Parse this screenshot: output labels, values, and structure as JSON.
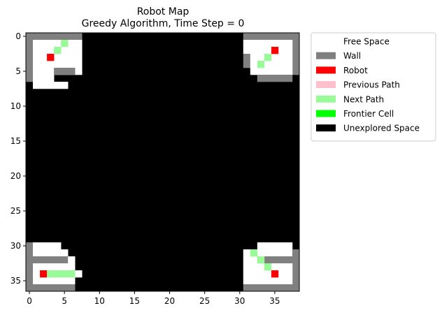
{
  "chart_data": {
    "type": "heatmap",
    "title": "Robot Map",
    "subtitle": "Greedy Algorithm, Time Step = 0",
    "grid": false,
    "xlim": [
      -0.5,
      38.5
    ],
    "ylim": [
      36.5,
      -0.5
    ],
    "x_ticks": [
      0,
      5,
      10,
      15,
      20,
      25,
      30,
      35
    ],
    "y_ticks": [
      0,
      5,
      10,
      15,
      20,
      25,
      30,
      35
    ],
    "background_cell": "unexplored",
    "legend_placement": "outside-right",
    "legend": [
      {
        "key": "free",
        "label": "Free Space",
        "color": "#ffffff"
      },
      {
        "key": "wall",
        "label": "Wall",
        "color": "#808080"
      },
      {
        "key": "robot",
        "label": "Robot",
        "color": "#ff0000"
      },
      {
        "key": "prev",
        "label": "Previous Path",
        "color": "#ffc0cb"
      },
      {
        "key": "next",
        "label": "Next Path",
        "color": "#98fb98"
      },
      {
        "key": "frontier",
        "label": "Frontier Cell",
        "color": "#00ff00"
      },
      {
        "key": "unexplored",
        "label": "Unexplored Space",
        "color": "#000000"
      }
    ],
    "regions": [
      {
        "type": "wall",
        "x": [
          0,
          7
        ],
        "y": [
          0,
          0
        ]
      },
      {
        "type": "wall",
        "x": [
          0,
          0
        ],
        "y": [
          1,
          6
        ]
      },
      {
        "type": "free",
        "x": [
          1,
          7
        ],
        "y": [
          1,
          5
        ]
      },
      {
        "type": "wall",
        "x": [
          1,
          3
        ],
        "y": [
          6,
          6
        ]
      },
      {
        "type": "wall",
        "x": [
          4,
          6
        ],
        "y": [
          5,
          5
        ]
      },
      {
        "type": "free",
        "x": [
          1,
          3
        ],
        "y": [
          6,
          6
        ]
      },
      {
        "type": "free",
        "x": [
          1,
          5
        ],
        "y": [
          7,
          7
        ]
      },
      {
        "type": "wall",
        "x": [
          31,
          38
        ],
        "y": [
          0,
          0
        ]
      },
      {
        "type": "wall",
        "x": [
          38,
          38
        ],
        "y": [
          1,
          5
        ]
      },
      {
        "type": "free",
        "x": [
          31,
          37
        ],
        "y": [
          1,
          2
        ]
      },
      {
        "type": "wall",
        "x": [
          31,
          31
        ],
        "y": [
          3,
          4
        ]
      },
      {
        "type": "free",
        "x": [
          32,
          37
        ],
        "y": [
          3,
          4
        ]
      },
      {
        "type": "free",
        "x": [
          32,
          32
        ],
        "y": [
          5,
          5
        ]
      },
      {
        "type": "free",
        "x": [
          33,
          37
        ],
        "y": [
          5,
          5
        ]
      },
      {
        "type": "wall",
        "x": [
          33,
          37
        ],
        "y": [
          6,
          6
        ]
      },
      {
        "type": "wall",
        "x": [
          0,
          0
        ],
        "y": [
          30,
          31
        ]
      },
      {
        "type": "free",
        "x": [
          1,
          4
        ],
        "y": [
          30,
          31
        ]
      },
      {
        "type": "free",
        "x": [
          5,
          5
        ],
        "y": [
          31,
          31
        ]
      },
      {
        "type": "wall",
        "x": [
          0,
          5
        ],
        "y": [
          32,
          32
        ]
      },
      {
        "type": "free",
        "x": [
          6,
          6
        ],
        "y": [
          32,
          32
        ]
      },
      {
        "type": "wall",
        "x": [
          0,
          0
        ],
        "y": [
          33,
          36
        ]
      },
      {
        "type": "free",
        "x": [
          1,
          6
        ],
        "y": [
          33,
          33
        ]
      },
      {
        "type": "free",
        "x": [
          1,
          7
        ],
        "y": [
          34,
          34
        ]
      },
      {
        "type": "free",
        "x": [
          1,
          6
        ],
        "y": [
          35,
          35
        ]
      },
      {
        "type": "wall",
        "x": [
          1,
          6
        ],
        "y": [
          36,
          36
        ]
      },
      {
        "type": "free",
        "x": [
          33,
          37
        ],
        "y": [
          30,
          30
        ]
      },
      {
        "type": "free",
        "x": [
          31,
          37
        ],
        "y": [
          31,
          31
        ]
      },
      {
        "type": "wall",
        "x": [
          38,
          38
        ],
        "y": [
          31,
          36
        ]
      },
      {
        "type": "free",
        "x": [
          31,
          32
        ],
        "y": [
          32,
          32
        ]
      },
      {
        "type": "wall",
        "x": [
          33,
          37
        ],
        "y": [
          32,
          32
        ]
      },
      {
        "type": "free",
        "x": [
          31,
          37
        ],
        "y": [
          33,
          35
        ]
      },
      {
        "type": "wall",
        "x": [
          31,
          38
        ],
        "y": [
          36,
          36
        ]
      }
    ],
    "cells": [
      {
        "type": "next",
        "x": 5,
        "y": 1
      },
      {
        "type": "next",
        "x": 4,
        "y": 2
      },
      {
        "type": "robot",
        "x": 3,
        "y": 3
      },
      {
        "type": "robot",
        "x": 35,
        "y": 2
      },
      {
        "type": "next",
        "x": 34,
        "y": 3
      },
      {
        "type": "next",
        "x": 33,
        "y": 4
      },
      {
        "type": "next",
        "x": 32,
        "y": 31
      },
      {
        "type": "next",
        "x": 33,
        "y": 32
      },
      {
        "type": "next",
        "x": 34,
        "y": 33
      },
      {
        "type": "robot",
        "x": 35,
        "y": 34
      },
      {
        "type": "robot",
        "x": 2,
        "y": 34
      },
      {
        "type": "next",
        "x": 3,
        "y": 34
      },
      {
        "type": "next",
        "x": 4,
        "y": 34
      },
      {
        "type": "next",
        "x": 5,
        "y": 34
      },
      {
        "type": "next",
        "x": 6,
        "y": 34
      }
    ]
  }
}
